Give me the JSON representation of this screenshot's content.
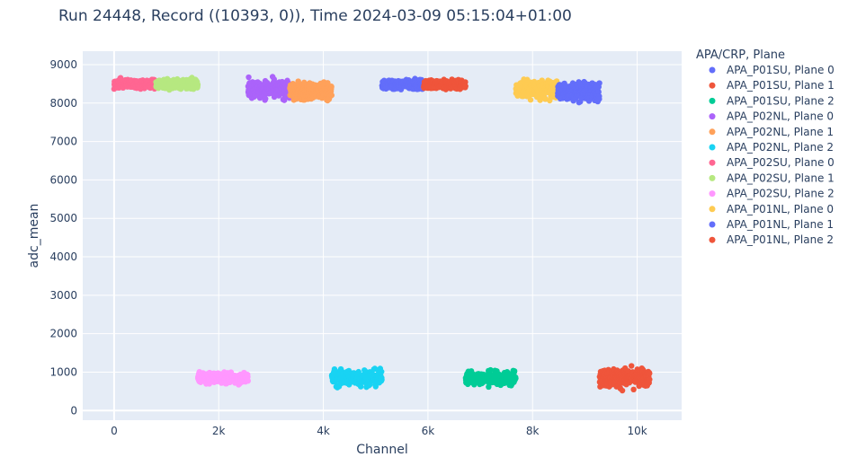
{
  "chart_data": {
    "type": "scatter",
    "title": "Run 24448, Record ((10393, 0)), Time 2024-03-09 05:15:04+01:00",
    "xlabel": "Channel",
    "ylabel": "adc_mean",
    "xlim": [
      -600,
      10850
    ],
    "ylim": [
      -250,
      9350
    ],
    "x_ticks": [
      0,
      2000,
      4000,
      6000,
      8000,
      10000
    ],
    "x_tick_labels": [
      "0",
      "2k",
      "4k",
      "6k",
      "8k",
      "10k"
    ],
    "y_ticks": [
      0,
      1000,
      2000,
      3000,
      4000,
      5000,
      6000,
      7000,
      8000,
      9000
    ],
    "y_tick_labels": [
      "0",
      "1000",
      "2000",
      "3000",
      "4000",
      "5000",
      "6000",
      "7000",
      "8000",
      "9000"
    ],
    "grid": true,
    "legend_title": "APA/CRP, Plane",
    "legend_position": "right",
    "colors": {
      "plot_background": "#e5ecf6",
      "grid": "#ffffff",
      "text": "#2a3f5f"
    },
    "series": [
      {
        "name": "APA_P01SU, Plane 0",
        "color": "#636efa",
        "x_range": [
          5120,
          5920
        ],
        "y_mean": 8480,
        "y_spread": 110
      },
      {
        "name": "APA_P01SU, Plane 1",
        "color": "#ef553b",
        "x_range": [
          5920,
          6720
        ],
        "y_mean": 8480,
        "y_spread": 110
      },
      {
        "name": "APA_P01SU, Plane 2",
        "color": "#00cc96",
        "x_range": [
          6720,
          7680
        ],
        "y_mean": 850,
        "y_spread": 170
      },
      {
        "name": "APA_P02NL, Plane 0",
        "color": "#ab63fa",
        "x_range": [
          2560,
          3360
        ],
        "y_mean": 8350,
        "y_spread": 220
      },
      {
        "name": "APA_P02NL, Plane 1",
        "color": "#ffa15a",
        "x_range": [
          3360,
          4160
        ],
        "y_mean": 8300,
        "y_spread": 230
      },
      {
        "name": "APA_P02NL, Plane 2",
        "color": "#19d3f3",
        "x_range": [
          4160,
          5120
        ],
        "y_mean": 850,
        "y_spread": 200
      },
      {
        "name": "APA_P02SU, Plane 0",
        "color": "#ff6692",
        "x_range": [
          0,
          800
        ],
        "y_mean": 8500,
        "y_spread": 110
      },
      {
        "name": "APA_P02SU, Plane 1",
        "color": "#b6e880",
        "x_range": [
          800,
          1600
        ],
        "y_mean": 8500,
        "y_spread": 120
      },
      {
        "name": "APA_P02SU, Plane 2",
        "color": "#ff97ff",
        "x_range": [
          1600,
          2560
        ],
        "y_mean": 850,
        "y_spread": 140
      },
      {
        "name": "APA_P01NL, Plane 0",
        "color": "#fecb52",
        "x_range": [
          7680,
          8480
        ],
        "y_mean": 8350,
        "y_spread": 230
      },
      {
        "name": "APA_P01NL, Plane 1",
        "color": "#636efa",
        "x_range": [
          8480,
          9280
        ],
        "y_mean": 8300,
        "y_spread": 220
      },
      {
        "name": "APA_P01NL, Plane 2",
        "color": "#ef553b",
        "x_range": [
          9280,
          10240
        ],
        "y_mean": 850,
        "y_spread": 230
      }
    ]
  }
}
